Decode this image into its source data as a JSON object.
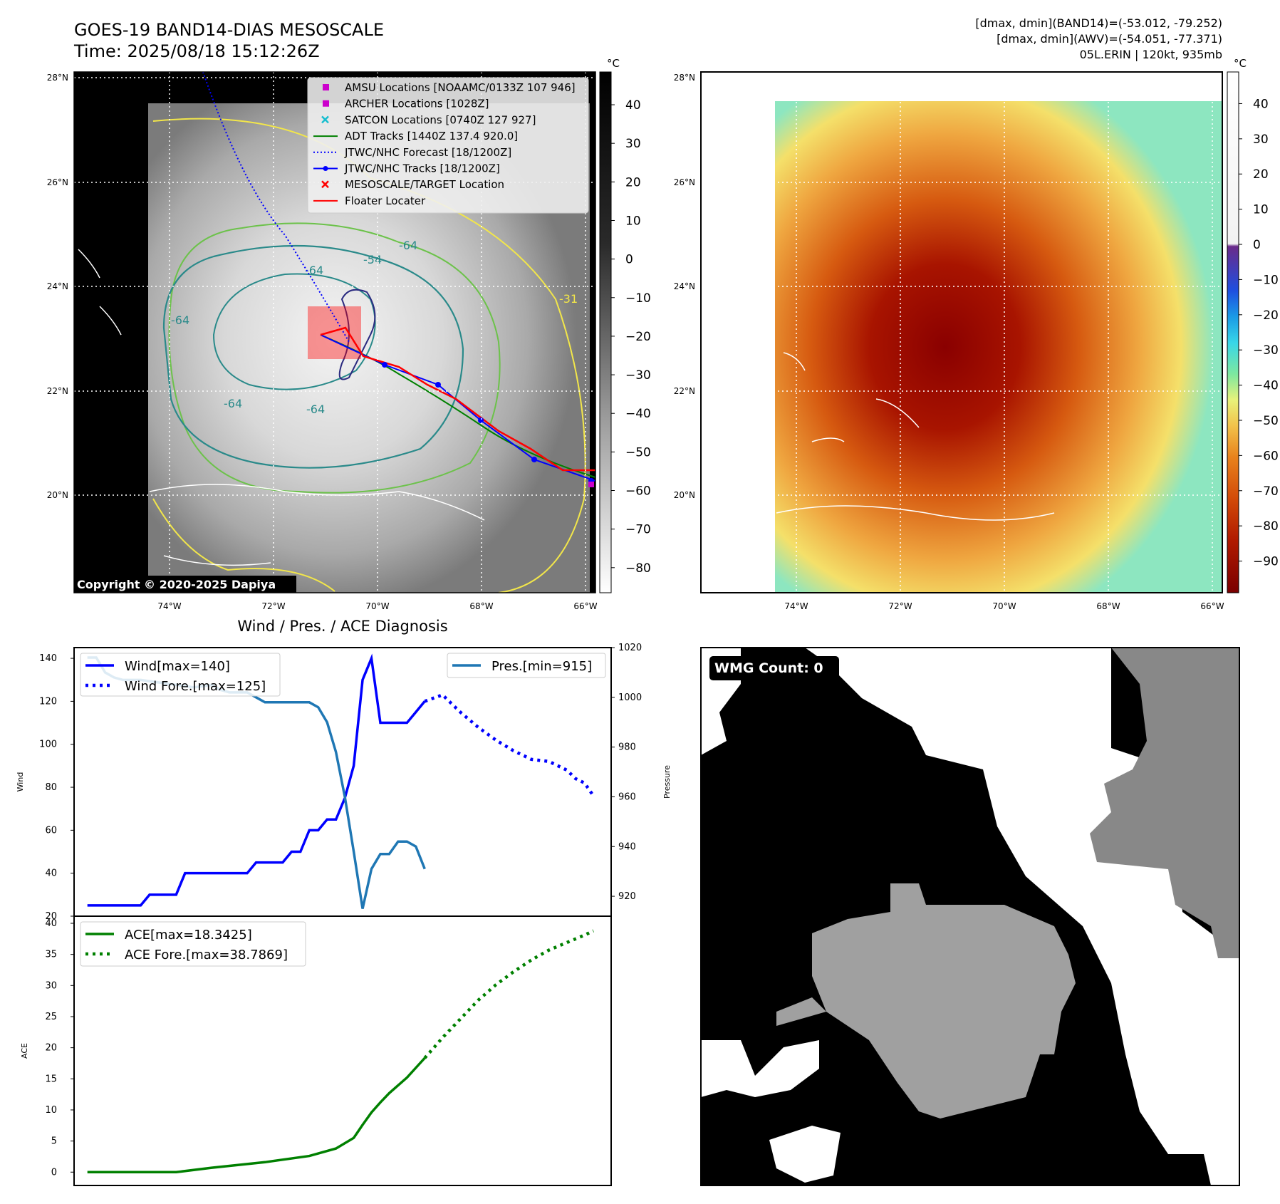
{
  "header": {
    "title": "GOES-19 BAND14-DIAS MESOSCALE",
    "time": "Time: 2025/08/18 15:12:26Z",
    "dmax_band14": "[dmax, dmin](BAND14)=(-53.012, -79.252)",
    "dmax_awv": "[dmax, dmin](AWV)=(-54.051, -77.371)",
    "storm": "05L.ERIN | 120kt, 935mb"
  },
  "map": {
    "lat_labels": [
      "28°N",
      "26°N",
      "24°N",
      "22°N",
      "20°N"
    ],
    "lon_labels": [
      "74°W",
      "72°W",
      "70°W",
      "68°W",
      "66°W"
    ],
    "copyright": "Copyright © 2020-2025 Dapiya",
    "contour_labels": [
      "-64",
      "-54",
      "-64",
      "-64",
      "-64",
      "-64",
      "-31"
    ],
    "legend": [
      {
        "label": "AMSU Locations [NOAAMC/0133Z 107 946]",
        "color": "#cc00cc",
        "marker": "square"
      },
      {
        "label": "ARCHER Locations [1028Z]",
        "color": "#cc00cc",
        "marker": "square"
      },
      {
        "label": "SATCON Locations [0740Z 127 927]",
        "color": "#17becf",
        "marker": "x"
      },
      {
        "label": "ADT Tracks [1440Z 137.4 920.0]",
        "color": "#008000",
        "marker": "line"
      },
      {
        "label": "JTWC/NHC Forecast [18/1200Z]",
        "color": "#0000ff",
        "marker": "dotted"
      },
      {
        "label": "JTWC/NHC Tracks [18/1200Z]",
        "color": "#0000ff",
        "marker": "line-dot"
      },
      {
        "label": "MESOSCALE/TARGET Location",
        "color": "#ff0000",
        "marker": "x"
      },
      {
        "label": "Floater Locater",
        "color": "#ff0000",
        "marker": "line"
      }
    ]
  },
  "colorbar_gray": {
    "unit": "°C",
    "ticks": [
      "40",
      "30",
      "20",
      "10",
      "0",
      "−10",
      "−20",
      "−30",
      "−40",
      "−50",
      "−60",
      "−70",
      "−80"
    ]
  },
  "colorbar_color": {
    "unit": "°C",
    "ticks": [
      "40",
      "30",
      "20",
      "10",
      "0",
      "−10",
      "−20",
      "−30",
      "−40",
      "−50",
      "−60",
      "−70",
      "−80",
      "−90"
    ]
  },
  "wmg": {
    "label": "WMG Count: 0"
  },
  "chart_data": [
    {
      "type": "line",
      "title": "Wind / Pres. / ACE Diagnosis",
      "ylabel": "Wind",
      "ylim": [
        20,
        145
      ],
      "yticks": [
        "20",
        "40",
        "60",
        "80",
        "100",
        "120",
        "140"
      ],
      "y2label": "Pressure",
      "y2lim": [
        912,
        1020
      ],
      "y2ticks": [
        "920",
        "940",
        "960",
        "980",
        "1000",
        "1020"
      ],
      "x": [
        0,
        1,
        2,
        3,
        4,
        5,
        6,
        7,
        8,
        9,
        10,
        11,
        12,
        13,
        14,
        15,
        16,
        17,
        18,
        19,
        20,
        21,
        22,
        23,
        24,
        25,
        26,
        27,
        28,
        29,
        30,
        31,
        32,
        33,
        34,
        35,
        36,
        37,
        38,
        39,
        40,
        41,
        42,
        43,
        44,
        45,
        46,
        47,
        48,
        49,
        50,
        51,
        52,
        53,
        54,
        55,
        56,
        57
      ],
      "series": [
        {
          "name": "Wind[max=140]",
          "axis": "y",
          "color": "#0000ff",
          "style": "solid",
          "x": [
            0,
            6,
            7,
            10,
            11,
            18,
            19,
            22,
            23,
            24,
            25,
            26,
            27,
            28,
            29,
            30,
            31,
            32,
            33,
            34,
            36,
            37,
            38
          ],
          "values": [
            25,
            25,
            30,
            30,
            40,
            40,
            45,
            45,
            50,
            50,
            60,
            60,
            65,
            65,
            75,
            90,
            130,
            140,
            110,
            110,
            110,
            115,
            120
          ]
        },
        {
          "name": "Wind Fore.[max=125]",
          "axis": "y",
          "color": "#0000ff",
          "style": "dotted",
          "x": [
            38,
            40,
            42,
            44,
            46,
            48,
            50,
            52,
            54,
            55,
            56,
            57
          ],
          "values": [
            120,
            123,
            115,
            108,
            102,
            97,
            93,
            92,
            88,
            84,
            82,
            76
          ]
        },
        {
          "name": "Pres.[min=915]",
          "axis": "y2",
          "color": "#1f77b4",
          "style": "solid",
          "x": [
            0,
            1,
            2,
            3,
            4,
            6,
            8,
            10,
            12,
            14,
            15,
            16,
            18,
            19,
            20,
            21,
            22,
            24,
            25,
            26,
            27,
            28,
            29,
            30,
            31,
            32,
            33,
            34,
            35,
            36,
            37,
            38
          ],
          "values": [
            1016,
            1016,
            1010,
            1008,
            1007,
            1007,
            1006,
            1005,
            1004,
            1005,
            1003,
            1002,
            1002,
            1000,
            998,
            998,
            998,
            998,
            998,
            996,
            990,
            978,
            960,
            938,
            915,
            931,
            937,
            937,
            942,
            942,
            940,
            931
          ]
        }
      ]
    },
    {
      "type": "line",
      "ylabel": "ACE",
      "ylim": [
        -1,
        40
      ],
      "yticks": [
        "0",
        "5",
        "10",
        "15",
        "20",
        "25",
        "30",
        "35",
        "40"
      ],
      "x": [
        0,
        10,
        20,
        25,
        28,
        30,
        32,
        34,
        36,
        38,
        40,
        42,
        44,
        46,
        48,
        50,
        52,
        54,
        56,
        57
      ],
      "series": [
        {
          "name": "ACE[max=18.3425]",
          "color": "#008000",
          "style": "solid",
          "x": [
            0,
            10,
            14,
            20,
            25,
            28,
            30,
            31,
            32,
            33,
            34,
            36,
            38
          ],
          "values": [
            0,
            0,
            0.7,
            1.6,
            2.6,
            3.8,
            5.5,
            7.6,
            9.6,
            11.2,
            12.7,
            15.2,
            18.34
          ]
        },
        {
          "name": "ACE Fore.[max=38.7869]",
          "color": "#008000",
          "style": "dotted",
          "x": [
            38,
            40,
            42,
            44,
            46,
            48,
            50,
            52,
            54,
            56,
            57
          ],
          "values": [
            18.34,
            21.6,
            24.6,
            27.6,
            30.1,
            32.2,
            34.1,
            35.7,
            36.9,
            38.1,
            38.79
          ]
        }
      ]
    }
  ]
}
